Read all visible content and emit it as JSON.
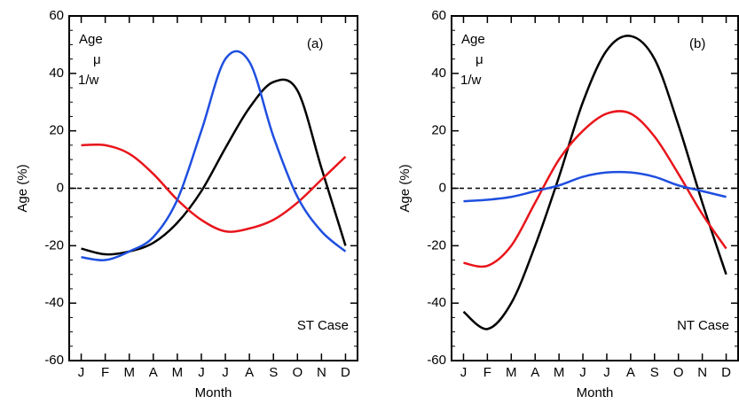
{
  "chart_data": [
    {
      "type": "line",
      "panel_label": "(a)",
      "annotation": "ST Case",
      "ylabel": "Age (%)",
      "xlabel": "Month",
      "categories": [
        "J",
        "F",
        "M",
        "A",
        "M",
        "J",
        "J",
        "A",
        "S",
        "O",
        "N",
        "D"
      ],
      "ylim": [
        -60,
        60
      ],
      "yticks": [
        -60,
        -40,
        -20,
        0,
        20,
        40,
        60
      ],
      "hline": 0,
      "series": [
        {
          "name": "Age",
          "color": "#000000",
          "values": [
            -21,
            -23,
            -22,
            -19,
            -12,
            -1,
            14,
            28,
            37,
            34,
            7,
            -20
          ]
        },
        {
          "name": "μ",
          "color": "#e8151b",
          "values": [
            15,
            15,
            12,
            5,
            -4,
            -11,
            -15,
            -14,
            -11,
            -5,
            3,
            11
          ]
        },
        {
          "name": "1/w",
          "color": "#1f4fe0",
          "values": [
            -24,
            -25,
            -22,
            -17,
            -4,
            20,
            45,
            44,
            18,
            -3,
            -15,
            -22
          ]
        }
      ]
    },
    {
      "type": "line",
      "panel_label": "(b)",
      "annotation": "NT Case",
      "ylabel": "Age (%)",
      "xlabel": "Month",
      "categories": [
        "J",
        "F",
        "M",
        "A",
        "M",
        "J",
        "J",
        "A",
        "S",
        "O",
        "N",
        "D"
      ],
      "ylim": [
        -60,
        60
      ],
      "yticks": [
        -60,
        -40,
        -20,
        0,
        20,
        40,
        60
      ],
      "hline": 0,
      "series": [
        {
          "name": "Age",
          "color": "#000000",
          "values": [
            -43,
            -49,
            -40,
            -20,
            4,
            30,
            48,
            53,
            45,
            22,
            -5,
            -30
          ]
        },
        {
          "name": "μ",
          "color": "#e8151b",
          "values": [
            -26,
            -27,
            -20,
            -5,
            10,
            20,
            26,
            26,
            18,
            5,
            -9,
            -21
          ]
        },
        {
          "name": "1/w",
          "color": "#1f4fe0",
          "values": [
            -4.5,
            -4,
            -3,
            -1,
            1,
            4,
            5.5,
            5.5,
            4,
            1,
            -1,
            -3
          ]
        }
      ]
    }
  ]
}
